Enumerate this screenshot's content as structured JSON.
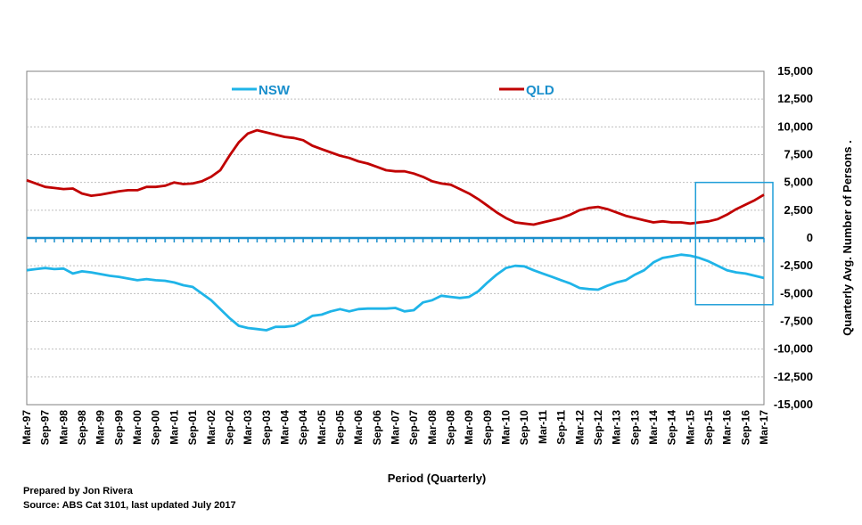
{
  "chart_data": {
    "type": "line",
    "xlabel": "Period (Quarterly)",
    "ylabel": "Quarterly Avg. Number of Persons .",
    "ylim": [
      -15000,
      15000
    ],
    "yticks": [
      15000,
      12500,
      10000,
      7500,
      5000,
      2500,
      0,
      -2500,
      -5000,
      -7500,
      -10000,
      -12500,
      -15000
    ],
    "ytick_labels": [
      "15,000",
      "12,500",
      "10,000",
      "7,500",
      "5,000",
      "2,500",
      "0",
      "-2,500",
      "-5,000",
      "-7,500",
      "-10,000",
      "-12,500",
      "-15,000"
    ],
    "x_tick_labels": [
      "Mar-97",
      "Sep-97",
      "Mar-98",
      "Sep-98",
      "Mar-99",
      "Sep-99",
      "Mar-00",
      "Sep-00",
      "Mar-01",
      "Sep-01",
      "Mar-02",
      "Sep-02",
      "Mar-03",
      "Sep-03",
      "Mar-04",
      "Sep-04",
      "Mar-05",
      "Sep-05",
      "Mar-06",
      "Sep-06",
      "Mar-07",
      "Sep-07",
      "Mar-08",
      "Sep-08",
      "Mar-09",
      "Sep-09",
      "Mar-10",
      "Sep-10",
      "Mar-11",
      "Sep-11",
      "Mar-12",
      "Sep-12",
      "Mar-13",
      "Sep-13",
      "Mar-14",
      "Sep-14",
      "Mar-15",
      "Sep-15",
      "Mar-16",
      "Sep-16",
      "Mar-17"
    ],
    "grid": true,
    "legend_position": "top",
    "highlight_box": {
      "x_from": "Mar-15",
      "x_to": "Mar-17",
      "y_from": -6000,
      "y_to": 5000
    },
    "series": [
      {
        "name": "NSW",
        "color": "#1fb4e8",
        "values": [
          -2900,
          -2800,
          -2700,
          -2800,
          -2750,
          -3200,
          -3000,
          -3100,
          -3250,
          -3400,
          -3500,
          -3650,
          -3800,
          -3700,
          -3800,
          -3850,
          -4000,
          -4250,
          -4400,
          -5000,
          -5600,
          -6400,
          -7200,
          -7900,
          -8100,
          -8200,
          -8300,
          -8000,
          -8000,
          -7900,
          -7500,
          -7000,
          -6900,
          -6600,
          -6400,
          -6600,
          -6400,
          -6350,
          -6350,
          -6350,
          -6300,
          -6600,
          -6500,
          -5800,
          -5600,
          -5200,
          -5300,
          -5400,
          -5300,
          -4800,
          -4000,
          -3300,
          -2700,
          -2500,
          -2550,
          -2900,
          -3200,
          -3500,
          -3800,
          -4100,
          -4500,
          -4600,
          -4650,
          -4300,
          -4000,
          -3800,
          -3300,
          -2900,
          -2200,
          -1800,
          -1650,
          -1500,
          -1600,
          -1800,
          -2100,
          -2500,
          -2900,
          -3100,
          -3200,
          -3400,
          -3600
        ]
      },
      {
        "name": "QLD",
        "color": "#c00000",
        "values": [
          5200,
          4900,
          4600,
          4500,
          4400,
          4450,
          4000,
          3800,
          3900,
          4050,
          4200,
          4300,
          4300,
          4600,
          4600,
          4700,
          5000,
          4850,
          4900,
          5100,
          5500,
          6100,
          7400,
          8600,
          9400,
          9700,
          9500,
          9300,
          9100,
          9000,
          8800,
          8300,
          8000,
          7700,
          7400,
          7200,
          6900,
          6700,
          6400,
          6100,
          6000,
          6000,
          5800,
          5500,
          5100,
          4900,
          4800,
          4400,
          4000,
          3500,
          2900,
          2300,
          1800,
          1400,
          1300,
          1200,
          1400,
          1600,
          1800,
          2100,
          2500,
          2700,
          2800,
          2600,
          2300,
          2000,
          1800,
          1600,
          1400,
          1500,
          1400,
          1400,
          1300,
          1400,
          1500,
          1700,
          2100,
          2600,
          3000,
          3400,
          3900
        ]
      }
    ]
  },
  "notes": {
    "prepared_by": "Prepared  by Jon  Rivera",
    "source": "Source:  ABS Cat 3101,  last updated   July 2017"
  }
}
